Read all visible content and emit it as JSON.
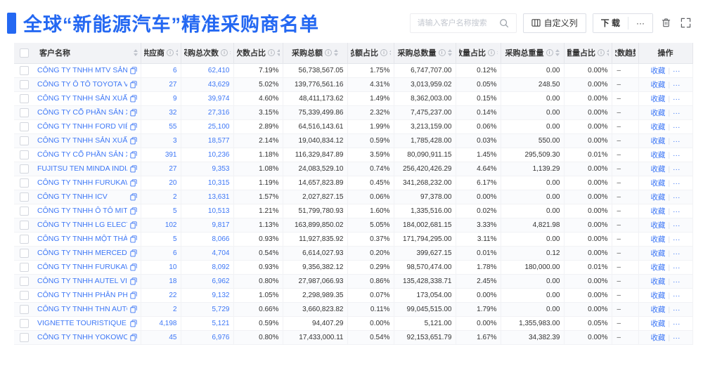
{
  "page": {
    "title": "全球“新能源汽车”精准采购商名单"
  },
  "toolbar": {
    "search_placeholder": "请输入客户名称搜索",
    "search_icon": "magnifier",
    "customize_label": "自定义列",
    "download_label": "下 载",
    "more_label": "···",
    "trash_icon": "trash",
    "fullscreen_icon": "fullscreen"
  },
  "table": {
    "select_all": "checkbox",
    "columns": [
      {
        "label": "客户名称",
        "info": false,
        "sort": true
      },
      {
        "label": "供应商",
        "info": true,
        "sort": true
      },
      {
        "label": "采购总次数",
        "info": true,
        "sort": true
      },
      {
        "label": "次数占比",
        "info": true,
        "sort": true
      },
      {
        "label": "采购总额",
        "info": true,
        "sort": true
      },
      {
        "label": "总额占比",
        "info": true,
        "sort": true
      },
      {
        "label": "采购总数量",
        "info": true,
        "sort": true
      },
      {
        "label": "数量占比",
        "info": true,
        "sort": true
      },
      {
        "label": "采购总重量",
        "info": true,
        "sort": true
      },
      {
        "label": "重量占比",
        "info": true,
        "sort": true
      },
      {
        "label": "次数趋势",
        "info": false,
        "sort": false
      },
      {
        "label": "操作",
        "info": false,
        "sort": false
      }
    ],
    "action_fav": "收藏",
    "action_more": "···",
    "rows": [
      {
        "name": "CÔNG TY TNHH MTV SẢN XUẤ...",
        "supplier": "6",
        "times": "62,410",
        "times_pct": "7.19%",
        "amount": "56,738,567.05",
        "amount_pct": "1.75%",
        "qty": "6,747,707.00",
        "qty_pct": "0.12%",
        "weight": "0.00",
        "weight_pct": "0.00%",
        "trend": "–"
      },
      {
        "name": "CÔNG TY Ô TÔ TOYOTA VIỆT ...",
        "supplier": "27",
        "times": "43,629",
        "times_pct": "5.02%",
        "amount": "139,776,561.16",
        "amount_pct": "4.31%",
        "qty": "3,013,959.02",
        "qty_pct": "0.05%",
        "weight": "248.50",
        "weight_pct": "0.00%",
        "trend": "–"
      },
      {
        "name": "CÔNG TY TNHH SẢN XUẤT VÀ ...",
        "supplier": "9",
        "times": "39,974",
        "times_pct": "4.60%",
        "amount": "48,411,173.62",
        "amount_pct": "1.49%",
        "qty": "8,362,003.00",
        "qty_pct": "0.15%",
        "weight": "0.00",
        "weight_pct": "0.00%",
        "trend": "–"
      },
      {
        "name": "CÔNG TY CỔ PHẦN SẢN XUẤT...",
        "supplier": "32",
        "times": "27,316",
        "times_pct": "3.15%",
        "amount": "75,339,499.86",
        "amount_pct": "2.32%",
        "qty": "7,475,237.00",
        "qty_pct": "0.14%",
        "weight": "0.00",
        "weight_pct": "0.00%",
        "trend": "–"
      },
      {
        "name": "CÔNG TY TNHH FORD VIỆT NAM",
        "supplier": "55",
        "times": "25,100",
        "times_pct": "2.89%",
        "amount": "64,516,143.61",
        "amount_pct": "1.99%",
        "qty": "3,213,159.00",
        "qty_pct": "0.06%",
        "weight": "0.00",
        "weight_pct": "0.00%",
        "trend": "–"
      },
      {
        "name": "CÔNG TY TNHH SẢN XUẤT VÀ ...",
        "supplier": "3",
        "times": "18,577",
        "times_pct": "2.14%",
        "amount": "19,040,834.12",
        "amount_pct": "0.59%",
        "qty": "1,785,428.00",
        "qty_pct": "0.03%",
        "weight": "550.00",
        "weight_pct": "0.00%",
        "trend": "–"
      },
      {
        "name": "CÔNG TY CỔ PHẦN SẢN XUẤT...",
        "supplier": "391",
        "times": "10,236",
        "times_pct": "1.18%",
        "amount": "116,329,847.89",
        "amount_pct": "3.59%",
        "qty": "80,090,911.15",
        "qty_pct": "1.45%",
        "weight": "295,509.30",
        "weight_pct": "0.01%",
        "trend": "–"
      },
      {
        "name": "FUJITSU TEN MINDA INDIA PVT...",
        "supplier": "27",
        "times": "9,353",
        "times_pct": "1.08%",
        "amount": "24,083,529.10",
        "amount_pct": "0.74%",
        "qty": "256,420,426.29",
        "qty_pct": "4.64%",
        "weight": "1,139.29",
        "weight_pct": "0.00%",
        "trend": "–"
      },
      {
        "name": "CÔNG TY TNHH FURUKAWA A...",
        "supplier": "20",
        "times": "10,315",
        "times_pct": "1.19%",
        "amount": "14,657,823.89",
        "amount_pct": "0.45%",
        "qty": "341,268,232.00",
        "qty_pct": "6.17%",
        "weight": "0.00",
        "weight_pct": "0.00%",
        "trend": "–"
      },
      {
        "name": "CÔNG TY TNHH ICV",
        "supplier": "2",
        "times": "13,631",
        "times_pct": "1.57%",
        "amount": "2,027,827.15",
        "amount_pct": "0.06%",
        "qty": "97,378.00",
        "qty_pct": "0.00%",
        "weight": "0.00",
        "weight_pct": "0.00%",
        "trend": "–"
      },
      {
        "name": "CÔNG TY TNHH Ô TÔ MITSUBI...",
        "supplier": "5",
        "times": "10,513",
        "times_pct": "1.21%",
        "amount": "51,799,780.93",
        "amount_pct": "1.60%",
        "qty": "1,335,516.00",
        "qty_pct": "0.02%",
        "weight": "0.00",
        "weight_pct": "0.00%",
        "trend": "–"
      },
      {
        "name": "CÔNG TY TNHH LG ELECTRON...",
        "supplier": "102",
        "times": "9,817",
        "times_pct": "1.13%",
        "amount": "163,899,850.02",
        "amount_pct": "5.05%",
        "qty": "184,002,681.15",
        "qty_pct": "3.33%",
        "weight": "4,821.98",
        "weight_pct": "0.00%",
        "trend": "–"
      },
      {
        "name": "CÔNG TY TNHH MỘT THÀNH V...",
        "supplier": "5",
        "times": "8,066",
        "times_pct": "0.93%",
        "amount": "11,927,835.92",
        "amount_pct": "0.37%",
        "qty": "171,794,295.00",
        "qty_pct": "3.11%",
        "weight": "0.00",
        "weight_pct": "0.00%",
        "trend": "–"
      },
      {
        "name": "CÔNG TY TNHH MERCEDES–B...",
        "supplier": "6",
        "times": "4,704",
        "times_pct": "0.54%",
        "amount": "6,614,027.93",
        "amount_pct": "0.20%",
        "qty": "399,627.15",
        "qty_pct": "0.01%",
        "weight": "0.12",
        "weight_pct": "0.00%",
        "trend": "–"
      },
      {
        "name": "CÔNG TY TNHH FURUKAWA A...",
        "supplier": "10",
        "times": "8,092",
        "times_pct": "0.93%",
        "amount": "9,356,382.12",
        "amount_pct": "0.29%",
        "qty": "98,570,474.00",
        "qty_pct": "1.78%",
        "weight": "180,000.00",
        "weight_pct": "0.01%",
        "trend": "–"
      },
      {
        "name": "CÔNG TY TNHH AUTEL VIỆT N...",
        "supplier": "18",
        "times": "6,962",
        "times_pct": "0.80%",
        "amount": "27,987,066.93",
        "amount_pct": "0.86%",
        "qty": "135,428,338.71",
        "qty_pct": "2.45%",
        "weight": "0.00",
        "weight_pct": "0.00%",
        "trend": "–"
      },
      {
        "name": "CÔNG TY TNHH PHÂN PHỐI T...",
        "supplier": "22",
        "times": "9,132",
        "times_pct": "1.05%",
        "amount": "2,298,989.35",
        "amount_pct": "0.07%",
        "qty": "173,054.00",
        "qty_pct": "0.00%",
        "weight": "0.00",
        "weight_pct": "0.00%",
        "trend": "–"
      },
      {
        "name": "CÔNG TY TNHH THN AUTOPAR...",
        "supplier": "2",
        "times": "5,729",
        "times_pct": "0.66%",
        "amount": "3,660,823.82",
        "amount_pct": "0.11%",
        "qty": "99,045,515.00",
        "qty_pct": "1.79%",
        "weight": "0.00",
        "weight_pct": "0.00%",
        "trend": "–"
      },
      {
        "name": "VIGNETTE TOURISTIQUE G UNI...",
        "supplier": "4,198",
        "times": "5,121",
        "times_pct": "0.59%",
        "amount": "94,407.29",
        "amount_pct": "0.00%",
        "qty": "5,121.00",
        "qty_pct": "0.00%",
        "weight": "1,355,983.00",
        "weight_pct": "0.05%",
        "trend": "–"
      },
      {
        "name": "CÔNG TY TNHH YOKOWO VIỆT...",
        "supplier": "45",
        "times": "6,976",
        "times_pct": "0.80%",
        "amount": "17,433,000.11",
        "amount_pct": "0.54%",
        "qty": "92,153,651.79",
        "qty_pct": "1.67%",
        "weight": "34,382.39",
        "weight_pct": "0.00%",
        "trend": "–"
      }
    ]
  },
  "colors": {
    "accent_blue": "#2468f2",
    "link_blue": "#3d77f6",
    "header_bg": "#f2f3f6",
    "stripe_bg": "#fafbfd"
  }
}
